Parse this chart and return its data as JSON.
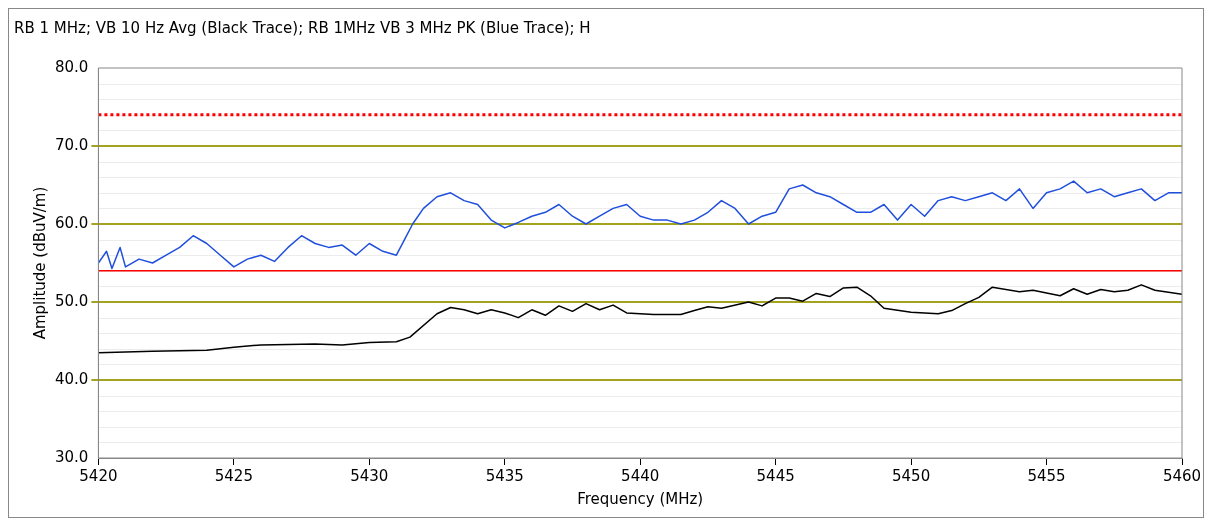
{
  "chart_data": {
    "type": "line",
    "title": "RB 1 MHz; VB 10 Hz Avg (Black Trace); RB 1MHz VB 3 MHz PK (Blue Trace); H",
    "xlabel": "Frequency (MHz)",
    "ylabel": "Amplitude (dBuV/m)",
    "xlim": [
      5420,
      5460
    ],
    "xticks": [
      5420,
      5425,
      5430,
      5435,
      5440,
      5445,
      5450,
      5455,
      5460
    ],
    "ylim": [
      30,
      80
    ],
    "yticks": [
      {
        "value": 30,
        "label": "30.0"
      },
      {
        "value": 40,
        "label": "40.0"
      },
      {
        "value": 50,
        "label": "50.0"
      },
      {
        "value": 60,
        "label": "60.0"
      },
      {
        "value": 70,
        "label": "70.0"
      },
      {
        "value": 80,
        "label": "80.0"
      }
    ],
    "grid": "y",
    "legend": false,
    "marker": "none",
    "ref_lines": [
      {
        "axis": "y",
        "value": 74,
        "color": "#ff0000",
        "line_style": "dotted"
      },
      {
        "axis": "y",
        "value": 54,
        "color": "#ff0000",
        "line_style": "solid"
      }
    ],
    "series": [
      {
        "color": "#1f4fdc",
        "x": [
          5420,
          5420.3,
          5420.5,
          5420.8,
          5421,
          5421.5,
          5422,
          5422.5,
          5423,
          5423.5,
          5424,
          5424.5,
          5425,
          5425.5,
          5426,
          5426.5,
          5427,
          5427.5,
          5428,
          5428.5,
          5429,
          5429.5,
          5430,
          5430.5,
          5431,
          5431.3,
          5431.6,
          5432,
          5432.5,
          5433,
          5433.5,
          5434,
          5434.5,
          5435,
          5435.5,
          5436,
          5436.5,
          5437,
          5437.5,
          5438,
          5438.5,
          5439,
          5439.5,
          5440,
          5440.5,
          5441,
          5441.5,
          5442,
          5442.5,
          5443,
          5443.5,
          5444,
          5444.5,
          5445,
          5445.5,
          5446,
          5446.5,
          5447,
          5447.5,
          5448,
          5448.5,
          5449,
          5449.5,
          5450,
          5450.5,
          5451,
          5451.5,
          5452,
          5452.5,
          5453,
          5453.5,
          5454,
          5454.5,
          5455,
          5455.5,
          5456,
          5456.5,
          5457,
          5457.5,
          5458,
          5458.5,
          5459,
          5459.5,
          5460
        ],
        "values": [
          55.0,
          56.5,
          54.3,
          57.0,
          54.5,
          55.5,
          55.0,
          56.0,
          57.0,
          58.5,
          57.5,
          56.0,
          54.5,
          55.5,
          56.0,
          55.2,
          57.0,
          58.5,
          57.5,
          57.0,
          57.3,
          56.0,
          57.5,
          56.5,
          56.0,
          58.0,
          60.0,
          62.0,
          63.5,
          64.0,
          63.0,
          62.5,
          60.5,
          59.5,
          60.2,
          61.0,
          61.5,
          62.5,
          61.0,
          60.0,
          61.0,
          62.0,
          62.5,
          61.0,
          60.5,
          60.5,
          60.0,
          60.5,
          61.5,
          63.0,
          62.0,
          60.0,
          61.0,
          61.5,
          64.5,
          65.0,
          64.0,
          63.5,
          62.5,
          61.5,
          61.5,
          62.5,
          60.5,
          62.5,
          61.0,
          63.0,
          63.5,
          63.0,
          63.5,
          64.0,
          63.0,
          64.5,
          62.0,
          64.0,
          64.5,
          65.5,
          64.0,
          64.5,
          63.5,
          64.0,
          64.5,
          63.0,
          64.0,
          64.0
        ]
      },
      {
        "color": "#000000",
        "x": [
          5420,
          5422,
          5424,
          5425,
          5426,
          5428,
          5429,
          5430,
          5431,
          5431.5,
          5432.5,
          5433,
          5433.5,
          5434,
          5434.5,
          5435,
          5435.5,
          5436,
          5436.5,
          5437,
          5437.5,
          5438,
          5438.5,
          5439,
          5439.5,
          5440.5,
          5441.5,
          5442,
          5442.5,
          5443,
          5444,
          5444.5,
          5445,
          5445.5,
          5446,
          5446.5,
          5447,
          5447.5,
          5448,
          5448.5,
          5449,
          5450,
          5451,
          5451.5,
          5452,
          5452.5,
          5453,
          5454,
          5454.5,
          5455.5,
          5456,
          5456.5,
          5457,
          5457.5,
          5458,
          5458.5,
          5459,
          5460
        ],
        "values": [
          43.5,
          43.7,
          43.8,
          44.2,
          44.5,
          44.6,
          44.5,
          44.8,
          44.9,
          45.5,
          48.5,
          49.3,
          49.0,
          48.5,
          49.0,
          48.6,
          48.0,
          49.0,
          48.3,
          49.5,
          48.8,
          49.8,
          49.0,
          49.6,
          48.6,
          48.4,
          48.4,
          48.9,
          49.4,
          49.2,
          50.0,
          49.5,
          50.5,
          50.5,
          50.1,
          51.1,
          50.7,
          51.8,
          51.9,
          50.8,
          49.2,
          48.7,
          48.5,
          48.9,
          49.8,
          50.6,
          51.9,
          51.3,
          51.5,
          50.8,
          51.7,
          51.0,
          51.6,
          51.3,
          51.5,
          52.2,
          51.5,
          51.0
        ]
      }
    ]
  }
}
